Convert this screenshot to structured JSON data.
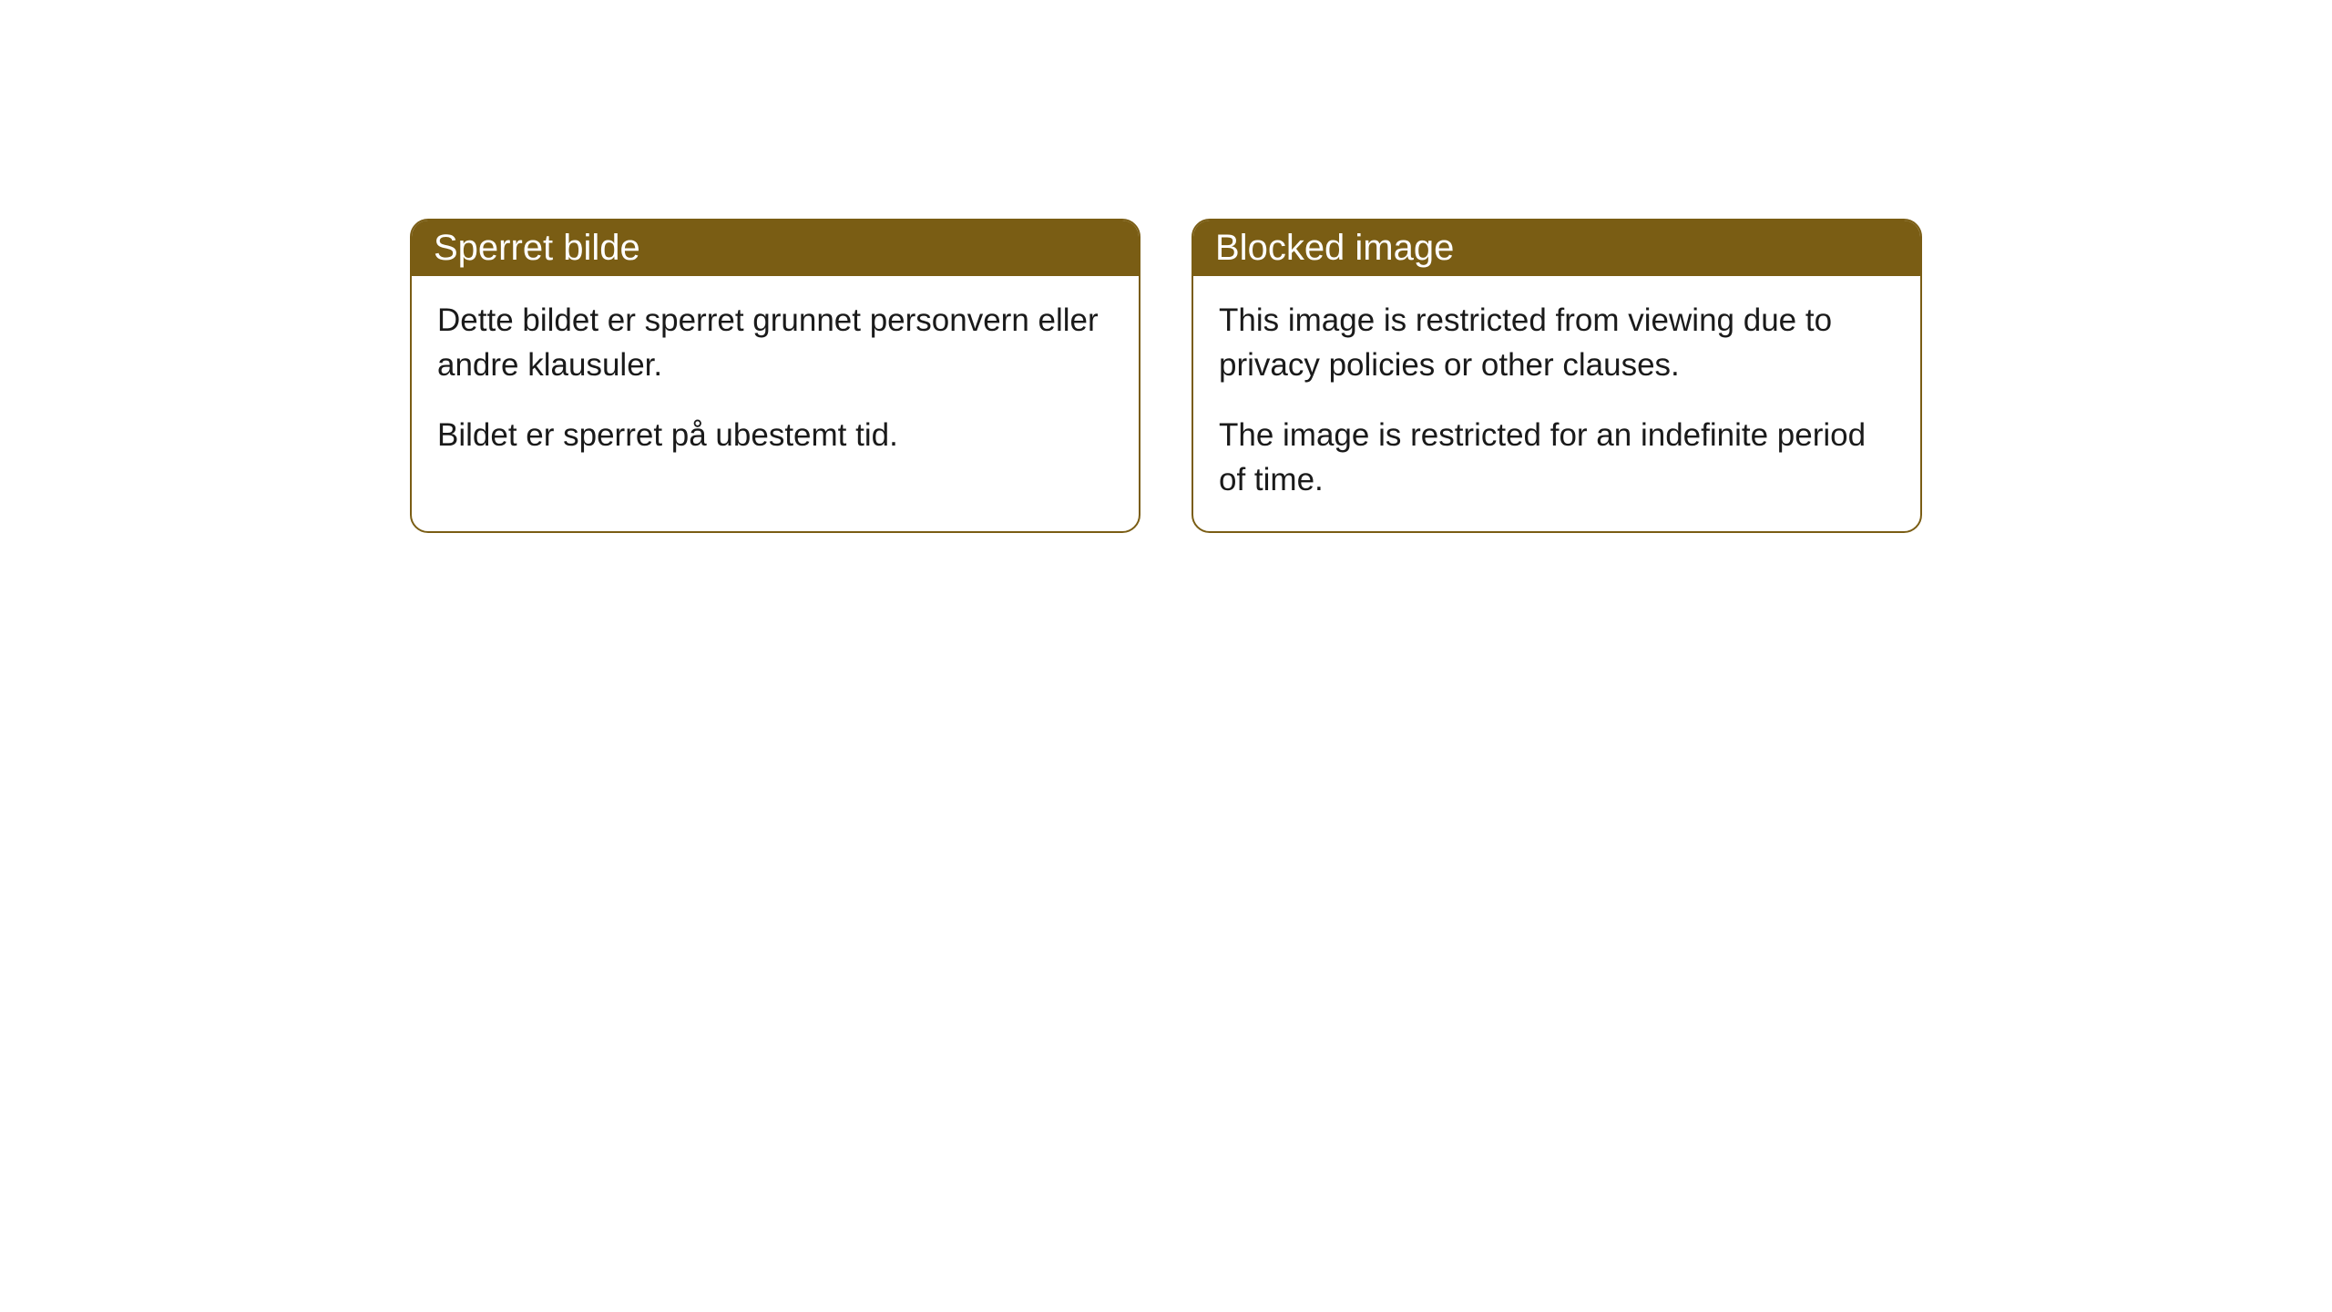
{
  "cards": [
    {
      "title": "Sperret bilde",
      "paragraph1": "Dette bildet er sperret grunnet personvern eller andre klausuler.",
      "paragraph2": "Bildet er sperret på ubestemt tid."
    },
    {
      "title": "Blocked image",
      "paragraph1": "This image is restricted from viewing due to privacy policies or other clauses.",
      "paragraph2": "The image is restricted for an indefinite period of time."
    }
  ],
  "styles": {
    "header_bg_color": "#7a5d14",
    "header_text_color": "#ffffff",
    "border_color": "#7a5d14",
    "body_bg_color": "#ffffff",
    "body_text_color": "#1a1a1a",
    "border_radius": 20,
    "header_fontsize": 40,
    "body_fontsize": 35
  }
}
